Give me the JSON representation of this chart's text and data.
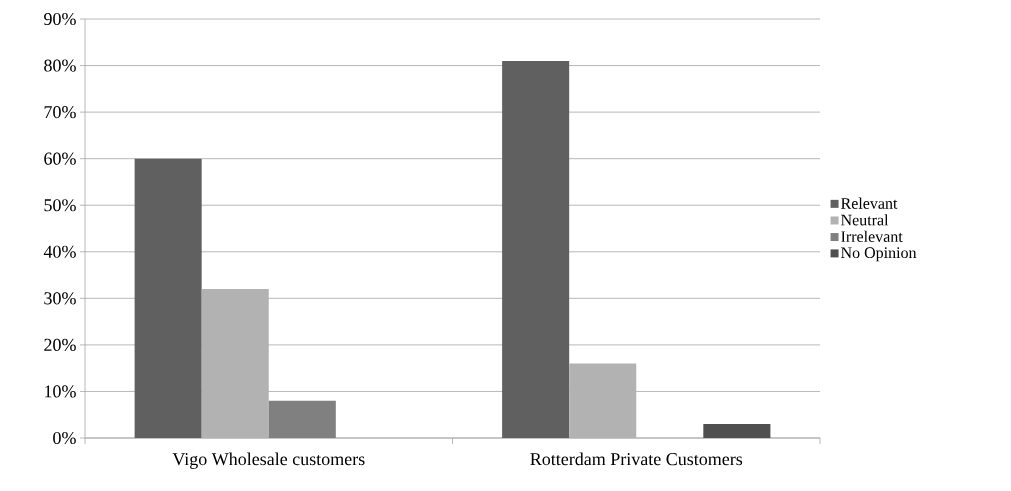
{
  "chart_data": {
    "type": "bar",
    "categories": [
      "Vigo Wholesale customers",
      "Rotterdam Private Customers"
    ],
    "series": [
      {
        "name": "Relevant",
        "color": "#606060",
        "values": [
          60,
          81
        ]
      },
      {
        "name": "Neutral",
        "color": "#b2b2b2",
        "values": [
          32,
          16
        ]
      },
      {
        "name": "Irrelevant",
        "color": "#808080",
        "values": [
          8,
          0
        ]
      },
      {
        "name": "No Opinion",
        "color": "#4f4f4f",
        "values": [
          0,
          3
        ]
      }
    ],
    "ylim": [
      0,
      90
    ],
    "yticks": [
      {
        "value": 0,
        "label": "0%"
      },
      {
        "value": 10,
        "label": "10%"
      },
      {
        "value": 20,
        "label": "20%"
      },
      {
        "value": 30,
        "label": "30%"
      },
      {
        "value": 40,
        "label": "40%"
      },
      {
        "value": 50,
        "label": "50%"
      },
      {
        "value": 60,
        "label": "60%"
      },
      {
        "value": 70,
        "label": "70%"
      },
      {
        "value": 80,
        "label": "80%"
      },
      {
        "value": 90,
        "label": "90%"
      }
    ],
    "grid": "y",
    "legend": "right"
  }
}
